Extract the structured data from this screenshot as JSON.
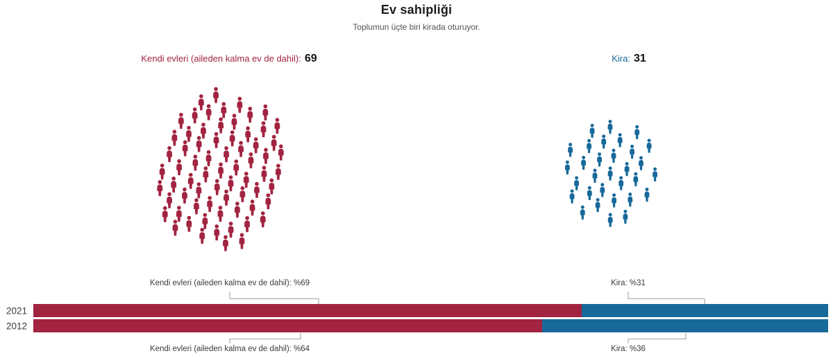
{
  "title": "Ev sahipliği",
  "subtitle": "Toplumun üçte biri kirada oturuyor.",
  "colors": {
    "own": "#A22440",
    "rent": "#17699A",
    "title_text": "#1c1c1c",
    "subtitle_text": "#525252",
    "annotation_text": "#3a3a3a",
    "year_text": "#3a3a3a",
    "value_text": "#111111",
    "connector": "#a3a3a3"
  },
  "legend": {
    "own": {
      "label": "Kendi evleri (aileden kalma ev de dahil):",
      "value": "69"
    },
    "rent": {
      "label": "Kira:",
      "value": "31"
    }
  },
  "pictograms": {
    "own_count": 69,
    "rent_count": 31
  },
  "bars": {
    "rows": [
      {
        "year": "2021",
        "own": 69,
        "rent": 31,
        "own_label": "Kendi evleri (aileden kalma ev de dahil): %69",
        "rent_label": "Kira: %31"
      },
      {
        "year": "2012",
        "own": 64,
        "rent": 36,
        "own_label": "Kendi evleri (aileden kalma ev de dahil): %64",
        "rent_label": "Kira: %36"
      }
    ]
  },
  "chart_data": [
    {
      "type": "pie",
      "variant": "pictogram-unit-chart",
      "title": "Ev sahipliği",
      "subtitle": "Toplumun üçte biri kirada oturuyor.",
      "categories": [
        "Kendi evleri (aileden kalma ev de dahil)",
        "Kira"
      ],
      "values": [
        69,
        31
      ],
      "colors": [
        "#A22440",
        "#17699A"
      ],
      "legend_position": "above-clusters"
    },
    {
      "type": "bar",
      "variant": "horizontal-stacked",
      "categories": [
        "2021",
        "2012"
      ],
      "series": [
        {
          "name": "Kendi evleri (aileden kalma ev de dahil)",
          "color": "#A22440",
          "values": [
            69,
            64
          ]
        },
        {
          "name": "Kira",
          "color": "#17699A",
          "values": [
            31,
            36
          ]
        }
      ],
      "unit": "%",
      "xlim": [
        0,
        100
      ],
      "grid": false,
      "annotations": [
        "Kendi evleri (aileden kalma ev de dahil): %69",
        "Kira: %31",
        "Kendi evleri (aileden kalma ev de dahil): %64",
        "Kira: %36"
      ]
    }
  ]
}
